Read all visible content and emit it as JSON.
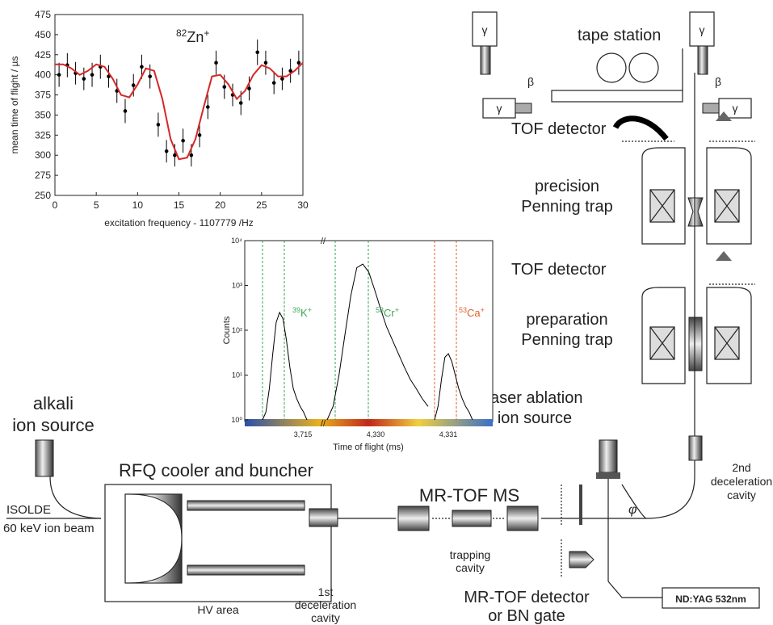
{
  "top_chart": {
    "type": "scatter",
    "ylabel": "mean time of flight / µs",
    "xlabel": "excitation frequency - 1107779 /Hz",
    "annotation": {
      "mass": "82",
      "symbol": "Zn",
      "charge": "+"
    },
    "xlim": [
      0,
      30
    ],
    "xticks": [
      0,
      5,
      10,
      15,
      20,
      25,
      30
    ],
    "ylim": [
      250,
      475
    ],
    "yticks": [
      250,
      275,
      300,
      325,
      350,
      375,
      400,
      425,
      450,
      475
    ],
    "series": [
      {
        "mode": "markers",
        "color": "#000000",
        "x": [
          0.5,
          1.5,
          2.5,
          3.5,
          4.5,
          5.5,
          6.5,
          7.5,
          8.5,
          9.5,
          10.5,
          11.5,
          12.5,
          13.5,
          14.5,
          15.5,
          16.5,
          17.5,
          18.5,
          19.5,
          20.5,
          21.5,
          22.5,
          23.5,
          24.5,
          25.5,
          26.5,
          27.5,
          28.5,
          29.5
        ],
        "values": [
          400,
          412,
          402,
          395,
          400,
          410,
          398,
          380,
          355,
          387,
          410,
          398,
          338,
          305,
          300,
          318,
          300,
          325,
          360,
          415,
          385,
          375,
          365,
          383,
          428,
          415,
          390,
          395,
          405,
          415
        ],
        "errors": [
          15,
          15,
          14,
          14,
          15,
          15,
          14,
          15,
          15,
          14,
          15,
          15,
          15,
          14,
          14,
          15,
          14,
          15,
          15,
          15,
          15,
          14,
          15,
          15,
          16,
          15,
          14,
          14,
          15,
          15
        ]
      },
      {
        "mode": "line",
        "color": "#d62728",
        "x": [
          0,
          1,
          2,
          3,
          4,
          5,
          6,
          7,
          8,
          9,
          10,
          11,
          12,
          13,
          14,
          15,
          16,
          17,
          18,
          19,
          20,
          21,
          22,
          23,
          24,
          25,
          26,
          27,
          28,
          29,
          30
        ],
        "values": [
          413,
          413,
          408,
          400,
          405,
          413,
          410,
          395,
          375,
          372,
          388,
          408,
          405,
          370,
          320,
          295,
          297,
          320,
          360,
          398,
          400,
          388,
          370,
          380,
          400,
          412,
          408,
          398,
          398,
          405,
          415
        ]
      }
    ]
  },
  "spectrum": {
    "type": "line",
    "log_y": true,
    "ylabel": "Counts",
    "xlabel": "Time of flight (ms)",
    "ylim": [
      1,
      10000
    ],
    "yticks": [
      {
        "value": 1,
        "label": "10⁰"
      },
      {
        "value": 10,
        "label": "10¹"
      },
      {
        "value": 100,
        "label": "10²"
      },
      {
        "value": 1000,
        "label": "10³"
      },
      {
        "value": 10000,
        "label": "10⁴"
      }
    ],
    "xtick_labels": [
      "3,715",
      "4,330",
      "4,331"
    ],
    "peaks": [
      {
        "mass": "39",
        "symbol": "K",
        "charge": "+",
        "color": "#3aa655",
        "counts": [
          1,
          1.5,
          5,
          30,
          150,
          250,
          180,
          60,
          15,
          5,
          3,
          2,
          1.5,
          1
        ]
      },
      {
        "mass": "53",
        "symbol": "Cr",
        "charge": "+",
        "color": "#3aa655",
        "counts": [
          1,
          2,
          10,
          80,
          600,
          2500,
          3000,
          2000,
          800,
          300,
          120,
          60,
          30,
          15,
          8,
          5,
          3,
          2
        ]
      },
      {
        "mass": "53",
        "symbol": "Ca",
        "charge": "+",
        "color": "#e0602a",
        "counts": [
          1,
          2,
          8,
          25,
          30,
          20,
          10,
          5,
          3,
          2,
          1.5,
          1
        ]
      }
    ]
  },
  "labels": {
    "tape_station": "tape station",
    "gamma": "γ",
    "beta": "β",
    "tof_detector": "TOF detector",
    "precision_trap": [
      "precision",
      "Penning trap"
    ],
    "preparation_trap": [
      "preparation",
      "Penning trap"
    ],
    "laser_source": [
      "laser ablation",
      "ion source"
    ],
    "alkali_source": [
      "alkali",
      "ion source"
    ],
    "rfq": "RFQ cooler and buncher",
    "isolde": [
      "ISOLDE",
      "60 keV ion beam"
    ],
    "hv_area": "HV area",
    "first_cavity": [
      "1st",
      "deceleration",
      "cavity"
    ],
    "mrtof_ms": "MR-TOF MS",
    "trapping_cavity": [
      "trapping",
      "cavity"
    ],
    "mrtof_detector": [
      "MR-TOF detector",
      "or BN gate"
    ],
    "ndyag": "ND:YAG 532nm",
    "second_cavity": [
      "2nd",
      "deceleration",
      "cavity"
    ],
    "phi": "φ"
  }
}
